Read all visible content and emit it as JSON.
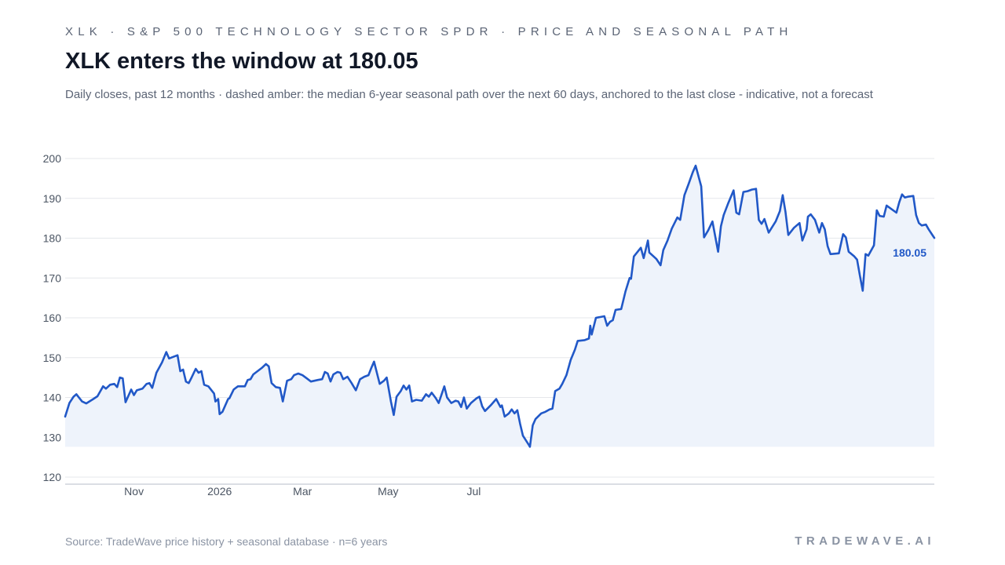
{
  "header": {
    "eyebrow": "XLK · S&P 500 TECHNOLOGY SECTOR SPDR · PRICE AND SEASONAL PATH",
    "title": "XLK enters the window at 180.05",
    "subtitle": "Daily closes, past 12 months · dashed amber: the median 6-year seasonal path over the next 60 days, anchored to the last close - indicative, not a forecast"
  },
  "footer": {
    "source": "Source: TradeWave price history + seasonal database · n=6 years",
    "brand": "TRADEWAVE.AI"
  },
  "colors": {
    "line": "#2158c7",
    "area": "#eef3fb",
    "grid": "#e5e7eb",
    "axis": "#cfd4dc",
    "tick_text": "#4b5563"
  },
  "chart_data": {
    "type": "line",
    "ylim": [
      120,
      200
    ],
    "yticks": [
      120,
      130,
      140,
      150,
      160,
      170,
      180,
      190,
      200
    ],
    "grid": "horizontal",
    "x_month_labels": [
      {
        "label": "Nov",
        "date": "2025-11-01"
      },
      {
        "label": "2026",
        "date": "2026-01-01"
      },
      {
        "label": "Mar",
        "date": "2026-03-01"
      },
      {
        "label": "May",
        "date": "2026-05-01"
      },
      {
        "label": "Jul",
        "date": "2026-07-01"
      }
    ],
    "series": [
      {
        "last_label": "180.05",
        "points": [
          [
            "2025-09-13",
            135.2
          ],
          [
            "2025-09-16",
            138.6
          ],
          [
            "2025-09-19",
            140.2
          ],
          [
            "2025-09-21",
            140.8
          ],
          [
            "2025-09-25",
            139.0
          ],
          [
            "2025-09-28",
            138.5
          ],
          [
            "2025-10-03",
            139.6
          ],
          [
            "2025-10-06",
            140.3
          ],
          [
            "2025-10-10",
            142.8
          ],
          [
            "2025-10-12",
            142.2
          ],
          [
            "2025-10-15",
            143.2
          ],
          [
            "2025-10-18",
            143.4
          ],
          [
            "2025-10-20",
            142.6
          ],
          [
            "2025-10-22",
            145.0
          ],
          [
            "2025-10-24",
            144.8
          ],
          [
            "2025-10-26",
            138.8
          ],
          [
            "2025-10-30",
            142.0
          ],
          [
            "2025-11-01",
            140.6
          ],
          [
            "2025-11-03",
            141.8
          ],
          [
            "2025-11-07",
            142.2
          ],
          [
            "2025-11-10",
            143.4
          ],
          [
            "2025-11-12",
            143.6
          ],
          [
            "2025-11-14",
            142.4
          ],
          [
            "2025-11-17",
            146.2
          ],
          [
            "2025-11-21",
            148.8
          ],
          [
            "2025-11-24",
            151.4
          ],
          [
            "2025-11-26",
            149.8
          ],
          [
            "2025-12-02",
            150.6
          ],
          [
            "2025-12-04",
            146.6
          ],
          [
            "2025-12-06",
            147.0
          ],
          [
            "2025-12-08",
            144.0
          ],
          [
            "2025-12-10",
            143.6
          ],
          [
            "2025-12-12",
            145.0
          ],
          [
            "2025-12-15",
            147.2
          ],
          [
            "2025-12-17",
            146.2
          ],
          [
            "2025-12-19",
            146.6
          ],
          [
            "2025-12-21",
            143.2
          ],
          [
            "2025-12-24",
            142.8
          ],
          [
            "2025-12-28",
            141.0
          ],
          [
            "2025-12-29",
            139.0
          ],
          [
            "2025-12-31",
            139.6
          ],
          [
            "2026-01-01",
            135.8
          ],
          [
            "2026-01-03",
            136.4
          ],
          [
            "2026-01-07",
            139.6
          ],
          [
            "2026-01-08",
            139.8
          ],
          [
            "2026-01-11",
            142.0
          ],
          [
            "2026-01-14",
            142.8
          ],
          [
            "2026-01-19",
            142.8
          ],
          [
            "2026-01-21",
            144.4
          ],
          [
            "2026-01-23",
            144.6
          ],
          [
            "2026-01-25",
            145.8
          ],
          [
            "2026-01-31",
            147.4
          ],
          [
            "2026-02-03",
            148.4
          ],
          [
            "2026-02-05",
            147.8
          ],
          [
            "2026-02-07",
            143.6
          ],
          [
            "2026-02-10",
            142.6
          ],
          [
            "2026-02-13",
            142.4
          ],
          [
            "2026-02-15",
            139.0
          ],
          [
            "2026-02-18",
            144.2
          ],
          [
            "2026-02-21",
            144.6
          ],
          [
            "2026-02-23",
            145.6
          ],
          [
            "2026-02-26",
            146.0
          ],
          [
            "2026-03-01",
            145.6
          ],
          [
            "2026-03-04",
            144.8
          ],
          [
            "2026-03-07",
            144.0
          ],
          [
            "2026-03-12",
            144.4
          ],
          [
            "2026-03-15",
            144.6
          ],
          [
            "2026-03-17",
            146.4
          ],
          [
            "2026-03-19",
            146.0
          ],
          [
            "2026-03-21",
            144.0
          ],
          [
            "2026-03-23",
            145.8
          ],
          [
            "2026-03-26",
            146.4
          ],
          [
            "2026-03-28",
            146.2
          ],
          [
            "2026-03-30",
            144.6
          ],
          [
            "2026-04-02",
            145.2
          ],
          [
            "2026-04-05",
            143.6
          ],
          [
            "2026-04-08",
            141.8
          ],
          [
            "2026-04-11",
            144.6
          ],
          [
            "2026-04-14",
            145.2
          ],
          [
            "2026-04-17",
            145.6
          ],
          [
            "2026-04-19",
            147.4
          ],
          [
            "2026-04-21",
            149.0
          ],
          [
            "2026-04-25",
            143.4
          ],
          [
            "2026-04-28",
            144.2
          ],
          [
            "2026-04-30",
            145.0
          ],
          [
            "2026-05-03",
            139.0
          ],
          [
            "2026-05-05",
            135.6
          ],
          [
            "2026-05-07",
            140.2
          ],
          [
            "2026-05-10",
            141.6
          ],
          [
            "2026-05-12",
            143.0
          ],
          [
            "2026-05-14",
            142.0
          ],
          [
            "2026-05-16",
            143.0
          ],
          [
            "2026-05-18",
            139.0
          ],
          [
            "2026-05-21",
            139.4
          ],
          [
            "2026-05-25",
            139.2
          ],
          [
            "2026-05-28",
            140.8
          ],
          [
            "2026-05-30",
            140.2
          ],
          [
            "2026-06-01",
            141.2
          ],
          [
            "2026-06-04",
            139.8
          ],
          [
            "2026-06-06",
            138.6
          ],
          [
            "2026-06-10",
            142.8
          ],
          [
            "2026-06-12",
            140.0
          ],
          [
            "2026-06-15",
            138.6
          ],
          [
            "2026-06-18",
            139.2
          ],
          [
            "2026-06-20",
            139.0
          ],
          [
            "2026-06-22",
            137.6
          ],
          [
            "2026-06-24",
            140.0
          ],
          [
            "2026-06-26",
            137.2
          ],
          [
            "2026-06-29",
            138.6
          ],
          [
            "2026-07-03",
            139.8
          ],
          [
            "2026-07-05",
            140.2
          ],
          [
            "2026-07-07",
            137.8
          ],
          [
            "2026-07-09",
            136.6
          ],
          [
            "2026-07-13",
            138.0
          ],
          [
            "2026-07-17",
            139.6
          ],
          [
            "2026-07-20",
            137.6
          ],
          [
            "2026-07-21",
            138.0
          ],
          [
            "2026-07-23",
            135.2
          ],
          [
            "2026-07-26",
            136.0
          ],
          [
            "2026-07-28",
            137.0
          ],
          [
            "2026-07-30",
            136.0
          ],
          [
            "2026-08-01",
            136.8
          ],
          [
            "2026-08-03",
            133.4
          ],
          [
            "2026-08-05",
            130.4
          ],
          [
            "2026-08-09",
            128.2
          ],
          [
            "2026-08-10",
            127.6
          ],
          [
            "2026-08-12",
            133.0
          ],
          [
            "2026-08-14",
            134.6
          ],
          [
            "2026-08-18",
            136.0
          ],
          [
            "2026-08-21",
            136.4
          ],
          [
            "2026-08-24",
            137.0
          ],
          [
            "2026-08-26",
            137.2
          ],
          [
            "2026-08-28",
            141.6
          ],
          [
            "2026-08-31",
            142.2
          ],
          [
            "2026-09-02",
            143.4
          ],
          [
            "2026-09-05",
            145.6
          ],
          [
            "2026-09-08",
            149.4
          ],
          [
            "2026-09-11",
            152.0
          ],
          [
            "2026-09-13",
            154.2
          ],
          [
            "2026-09-18",
            154.4
          ],
          [
            "2026-09-21",
            154.8
          ],
          [
            "2026-09-22",
            158.0
          ],
          [
            "2026-09-23",
            155.8
          ],
          [
            "2026-09-26",
            160.0
          ],
          [
            "2026-09-29",
            160.2
          ],
          [
            "2026-10-02",
            160.4
          ],
          [
            "2026-10-04",
            158.0
          ],
          [
            "2026-10-06",
            159.0
          ],
          [
            "2026-10-08",
            159.4
          ],
          [
            "2026-10-10",
            162.0
          ],
          [
            "2026-10-14",
            162.2
          ],
          [
            "2026-10-17",
            166.6
          ],
          [
            "2026-10-20",
            170.0
          ],
          [
            "2026-10-21",
            169.8
          ],
          [
            "2026-10-23",
            175.4
          ],
          [
            "2026-10-28",
            177.6
          ],
          [
            "2026-10-30",
            175.0
          ],
          [
            "2026-11-02",
            179.4
          ],
          [
            "2026-11-03",
            176.4
          ],
          [
            "2026-11-08",
            174.8
          ],
          [
            "2026-11-11",
            173.2
          ],
          [
            "2026-11-13",
            177.0
          ],
          [
            "2026-11-16",
            179.4
          ],
          [
            "2026-11-19",
            182.4
          ],
          [
            "2026-11-23",
            185.2
          ],
          [
            "2026-11-25",
            184.6
          ],
          [
            "2026-11-28",
            190.8
          ],
          [
            "2026-12-01",
            193.6
          ],
          [
            "2026-12-04",
            196.6
          ],
          [
            "2026-12-06",
            198.2
          ],
          [
            "2026-12-10",
            193.0
          ],
          [
            "2026-12-12",
            180.2
          ],
          [
            "2026-12-15",
            182.0
          ],
          [
            "2026-12-18",
            184.2
          ],
          [
            "2026-12-22",
            176.6
          ],
          [
            "2026-12-24",
            183.0
          ],
          [
            "2026-12-26",
            185.8
          ],
          [
            "2026-12-29",
            188.6
          ],
          [
            "2027-01-02",
            192.0
          ],
          [
            "2027-01-04",
            186.4
          ],
          [
            "2027-01-06",
            186.0
          ],
          [
            "2027-01-09",
            191.6
          ],
          [
            "2027-01-12",
            191.8
          ],
          [
            "2027-01-15",
            192.2
          ],
          [
            "2027-01-18",
            192.4
          ],
          [
            "2027-01-20",
            184.6
          ],
          [
            "2027-01-22",
            183.6
          ],
          [
            "2027-01-24",
            184.8
          ],
          [
            "2027-01-27",
            181.4
          ],
          [
            "2027-02-01",
            184.2
          ],
          [
            "2027-02-04",
            186.8
          ],
          [
            "2027-02-06",
            190.8
          ],
          [
            "2027-02-08",
            186.6
          ],
          [
            "2027-02-10",
            180.8
          ],
          [
            "2027-02-14",
            182.6
          ],
          [
            "2027-02-18",
            183.8
          ],
          [
            "2027-02-20",
            179.4
          ],
          [
            "2027-02-23",
            182.2
          ],
          [
            "2027-02-24",
            185.4
          ],
          [
            "2027-02-26",
            186.0
          ],
          [
            "2027-03-01",
            184.6
          ],
          [
            "2027-03-04",
            181.4
          ],
          [
            "2027-03-06",
            183.8
          ],
          [
            "2027-03-08",
            182.2
          ],
          [
            "2027-03-10",
            178.0
          ],
          [
            "2027-03-12",
            176.0
          ],
          [
            "2027-03-18",
            176.2
          ],
          [
            "2027-03-21",
            181.0
          ],
          [
            "2027-03-23",
            180.2
          ],
          [
            "2027-03-25",
            176.6
          ],
          [
            "2027-03-29",
            175.4
          ],
          [
            "2027-03-31",
            174.6
          ],
          [
            "2027-04-02",
            170.6
          ],
          [
            "2027-04-04",
            166.8
          ],
          [
            "2027-04-06",
            176.0
          ],
          [
            "2027-04-08",
            175.6
          ],
          [
            "2027-04-12",
            178.2
          ],
          [
            "2027-04-14",
            187.0
          ],
          [
            "2027-04-16",
            185.6
          ],
          [
            "2027-04-19",
            185.4
          ],
          [
            "2027-04-21",
            188.2
          ],
          [
            "2027-04-28",
            186.4
          ],
          [
            "2027-04-30",
            189.0
          ],
          [
            "2027-05-02",
            191.0
          ],
          [
            "2027-05-04",
            190.2
          ],
          [
            "2027-05-06",
            190.4
          ],
          [
            "2027-05-10",
            190.6
          ],
          [
            "2027-05-12",
            185.8
          ],
          [
            "2027-05-14",
            183.8
          ],
          [
            "2027-05-16",
            183.2
          ],
          [
            "2027-05-19",
            183.4
          ],
          [
            "2027-05-21",
            182.2
          ],
          [
            "2027-05-24",
            180.6
          ],
          [
            "2027-05-25",
            180.05
          ]
        ]
      }
    ]
  }
}
